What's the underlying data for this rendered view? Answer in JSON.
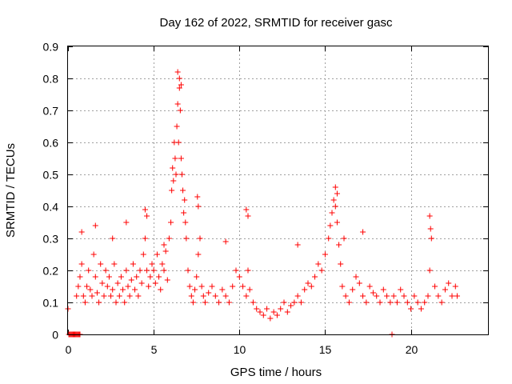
{
  "chart_data": {
    "type": "scatter",
    "title": "Day 162 of 2022, SRMTID for receiver gasc",
    "xlabel": "GPS time / hours",
    "ylabel": "SRMTID / TECUs",
    "xlim": [
      0,
      24.5
    ],
    "ylim": [
      0,
      0.9
    ],
    "xticks": [
      0,
      5,
      10,
      15,
      20
    ],
    "yticks": [
      0,
      0.1,
      0.2,
      0.3,
      0.4,
      0.5,
      0.6,
      0.7,
      0.8,
      0.9
    ],
    "ytick_labels": [
      "0",
      "0.1",
      "0.2",
      "0.3",
      "0.4",
      "0.5",
      "0.6",
      "0.7",
      "0.8",
      "0.9"
    ],
    "grid": true,
    "marker": "+",
    "series": [
      {
        "name": "SRMTID",
        "color": "#ff0000",
        "x": [
          0.0,
          0.05,
          0.1,
          0.15,
          0.2,
          0.25,
          0.3,
          0.35,
          0.4,
          0.45,
          0.5,
          0.55,
          0.6,
          0.65,
          0.7,
          0.5,
          0.6,
          0.7,
          0.8,
          0.9,
          1.0,
          1.1,
          1.2,
          1.3,
          1.4,
          1.5,
          1.6,
          1.7,
          1.8,
          1.9,
          2.0,
          2.1,
          2.2,
          2.3,
          2.4,
          2.5,
          2.6,
          2.7,
          2.8,
          2.9,
          3.0,
          3.1,
          3.2,
          3.3,
          3.4,
          3.5,
          3.6,
          3.7,
          3.8,
          3.9,
          4.0,
          4.1,
          4.2,
          4.3,
          4.4,
          4.5,
          4.6,
          4.7,
          4.8,
          4.9,
          5.0,
          5.1,
          5.2,
          5.3,
          5.4,
          5.5,
          5.6,
          5.7,
          5.8,
          5.9,
          6.0,
          6.05,
          6.1,
          6.15,
          6.2,
          6.25,
          6.3,
          6.35,
          6.4,
          6.45,
          6.5,
          6.55,
          6.6,
          6.65,
          6.7,
          6.75,
          6.8,
          6.85,
          6.9,
          7.0,
          7.1,
          7.2,
          7.3,
          7.4,
          7.5,
          7.6,
          7.7,
          7.8,
          7.9,
          8.0,
          8.2,
          8.4,
          8.6,
          8.8,
          9.0,
          9.2,
          9.4,
          9.6,
          9.8,
          10.0,
          10.2,
          10.4,
          10.5,
          10.6,
          10.8,
          11.0,
          11.2,
          11.4,
          11.6,
          11.8,
          12.0,
          12.2,
          12.4,
          12.6,
          12.8,
          13.0,
          13.2,
          13.4,
          13.6,
          13.8,
          14.0,
          14.2,
          14.4,
          14.6,
          14.8,
          15.0,
          15.2,
          15.4,
          15.5,
          15.6,
          15.7,
          15.8,
          15.9,
          16.0,
          16.2,
          16.4,
          16.6,
          16.8,
          17.0,
          17.2,
          17.4,
          17.6,
          17.8,
          18.0,
          18.2,
          18.4,
          18.6,
          18.8,
          18.9,
          19.0,
          19.2,
          19.4,
          19.6,
          19.8,
          20.0,
          20.2,
          20.4,
          20.6,
          20.8,
          21.0,
          21.1,
          21.2,
          21.4,
          21.6,
          21.8,
          22.0,
          22.2,
          22.4,
          22.6,
          22.7,
          0.8,
          1.6,
          2.6,
          3.4,
          4.5,
          4.6,
          5.6,
          6.4,
          6.5,
          6.6,
          7.55,
          7.6,
          10.4,
          10.5,
          15.6,
          15.7,
          17.2,
          21.1,
          21.15,
          9.2,
          13.4,
          15.3,
          16.1
        ],
        "y": [
          0.08,
          0.0,
          0.0,
          0.0,
          0.0,
          0.0,
          0.0,
          0.0,
          0.0,
          0.0,
          0.0,
          0.0,
          0.0,
          0.0,
          0.0,
          0.12,
          0.15,
          0.18,
          0.22,
          0.12,
          0.1,
          0.15,
          0.2,
          0.14,
          0.12,
          0.25,
          0.18,
          0.13,
          0.1,
          0.22,
          0.16,
          0.12,
          0.2,
          0.15,
          0.18,
          0.12,
          0.14,
          0.22,
          0.1,
          0.16,
          0.12,
          0.18,
          0.14,
          0.1,
          0.2,
          0.15,
          0.12,
          0.17,
          0.22,
          0.14,
          0.18,
          0.12,
          0.2,
          0.16,
          0.25,
          0.3,
          0.2,
          0.15,
          0.18,
          0.22,
          0.2,
          0.16,
          0.25,
          0.18,
          0.14,
          0.22,
          0.2,
          0.26,
          0.17,
          0.3,
          0.35,
          0.45,
          0.52,
          0.48,
          0.6,
          0.55,
          0.5,
          0.65,
          0.72,
          0.6,
          0.8,
          0.7,
          0.55,
          0.5,
          0.45,
          0.38,
          0.42,
          0.35,
          0.3,
          0.2,
          0.15,
          0.12,
          0.1,
          0.14,
          0.18,
          0.25,
          0.3,
          0.15,
          0.12,
          0.1,
          0.13,
          0.15,
          0.12,
          0.1,
          0.14,
          0.12,
          0.1,
          0.15,
          0.2,
          0.18,
          0.15,
          0.12,
          0.2,
          0.14,
          0.1,
          0.08,
          0.07,
          0.06,
          0.08,
          0.05,
          0.07,
          0.06,
          0.08,
          0.1,
          0.07,
          0.09,
          0.1,
          0.12,
          0.1,
          0.14,
          0.16,
          0.15,
          0.18,
          0.22,
          0.2,
          0.25,
          0.3,
          0.38,
          0.42,
          0.4,
          0.35,
          0.28,
          0.22,
          0.15,
          0.12,
          0.1,
          0.14,
          0.18,
          0.16,
          0.12,
          0.1,
          0.15,
          0.13,
          0.12,
          0.1,
          0.14,
          0.12,
          0.1,
          0.0,
          0.12,
          0.1,
          0.14,
          0.12,
          0.1,
          0.08,
          0.12,
          0.1,
          0.08,
          0.1,
          0.12,
          0.2,
          0.3,
          0.15,
          0.12,
          0.1,
          0.14,
          0.16,
          0.12,
          0.15,
          0.12,
          0.32,
          0.34,
          0.3,
          0.35,
          0.39,
          0.37,
          0.28,
          0.82,
          0.77,
          0.78,
          0.43,
          0.4,
          0.39,
          0.37,
          0.46,
          0.44,
          0.32,
          0.37,
          0.33,
          0.29,
          0.28,
          0.34,
          0.3
        ]
      }
    ]
  }
}
